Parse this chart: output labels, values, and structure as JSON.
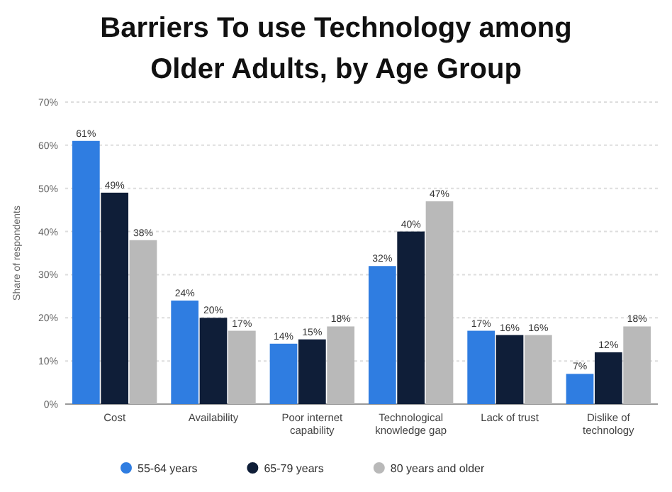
{
  "chart_data": {
    "type": "bar",
    "title": "Barriers To use Technology among Older Adults, by Age Group",
    "ylabel": "Share of respondents",
    "categories": [
      "Cost",
      "Availability",
      "Poor internet capability",
      "Technological knowledge gap",
      "Lack of trust",
      "Dislike of technology"
    ],
    "series": [
      {
        "name": "55-64 years",
        "color": "#2f7de1",
        "values": [
          61,
          24,
          14,
          32,
          17,
          7
        ],
        "value_labels": [
          "61%",
          "24%",
          "14%",
          "32%",
          "17%",
          "7%"
        ]
      },
      {
        "name": "65-79 years",
        "color": "#0f1e38",
        "values": [
          49,
          20,
          15,
          40,
          16,
          12
        ],
        "value_labels": [
          "49%",
          "20%",
          "15%",
          "40%",
          "16%",
          "12%"
        ]
      },
      {
        "name": "80 years and older",
        "color": "#b9b9b9",
        "values": [
          38,
          17,
          18,
          47,
          16,
          18
        ],
        "value_labels": [
          "38%",
          "17%",
          "18%",
          "47%",
          "16%",
          "18%"
        ]
      }
    ],
    "ylim": [
      0,
      70
    ],
    "yticks": [
      {
        "value": 0,
        "label": "0%"
      },
      {
        "value": 10,
        "label": "10%"
      },
      {
        "value": 20,
        "label": "20%"
      },
      {
        "value": 30,
        "label": "30%"
      },
      {
        "value": 40,
        "label": "40%"
      },
      {
        "value": 50,
        "label": "50%"
      },
      {
        "value": 60,
        "label": "60%"
      },
      {
        "value": 70,
        "label": "70%"
      }
    ],
    "grid": "y",
    "legend": "bottom"
  }
}
